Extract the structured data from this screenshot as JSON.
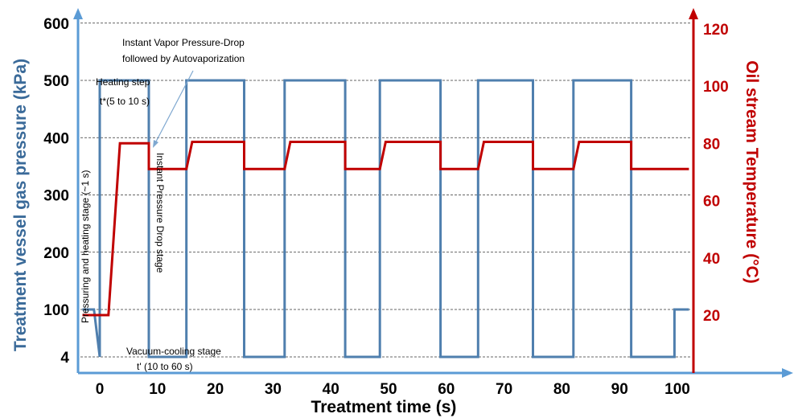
{
  "chart_data": {
    "type": "line",
    "xlabel": "Treatment time (s)",
    "ylabel_left": "Treatment vessel gas pressure (kPa)",
    "ylabel_right": "Oil stream Temperature (°C)",
    "x_ticks": [
      "0",
      "10",
      "20",
      "30",
      "40",
      "50",
      "60",
      "70",
      "80",
      "90",
      "100"
    ],
    "y_left_ticks": [
      "4",
      "100",
      "200",
      "300",
      "400",
      "500",
      "600"
    ],
    "y_right_ticks": [
      "20",
      "40",
      "60",
      "80",
      "100",
      "120"
    ],
    "xlim": [
      -3,
      102
    ],
    "ylim_left": [
      4,
      600
    ],
    "ylim_right": [
      20,
      120
    ],
    "grid": "horizontal dashed",
    "colors": {
      "pressure": "#4f7fae",
      "temperature": "#c00000",
      "axis_left": "#5b9bd5",
      "axis_right": "#c00000",
      "axis_x": "#5b9bd5"
    },
    "series": [
      {
        "axis": "left",
        "color": "#4f7fae",
        "points": [
          [
            -3,
            100
          ],
          [
            -1,
            100
          ],
          [
            0,
            4
          ],
          [
            0,
            500
          ],
          [
            8.5,
            500
          ],
          [
            8.5,
            4
          ],
          [
            15,
            4
          ],
          [
            15,
            500
          ],
          [
            25,
            500
          ],
          [
            25,
            4
          ],
          [
            32,
            4
          ],
          [
            32,
            500
          ],
          [
            42.5,
            500
          ],
          [
            42.5,
            4
          ],
          [
            48.5,
            4
          ],
          [
            48.5,
            500
          ],
          [
            59,
            500
          ],
          [
            59,
            4
          ],
          [
            65.5,
            4
          ],
          [
            65.5,
            500
          ],
          [
            75,
            500
          ],
          [
            75,
            4
          ],
          [
            82,
            4
          ],
          [
            82,
            500
          ],
          [
            92,
            500
          ],
          [
            92,
            4
          ],
          [
            99.5,
            4
          ],
          [
            99.5,
            100
          ],
          [
            102,
            100
          ]
        ]
      },
      {
        "axis": "right",
        "color": "#c00000",
        "points": [
          [
            -3,
            20
          ],
          [
            1.5,
            20
          ],
          [
            3.5,
            80
          ],
          [
            8.5,
            80
          ],
          [
            8.5,
            71
          ],
          [
            15,
            71
          ],
          [
            16,
            80.5
          ],
          [
            25,
            80.5
          ],
          [
            25,
            71
          ],
          [
            32,
            71
          ],
          [
            33,
            80.5
          ],
          [
            42.5,
            80.5
          ],
          [
            42.5,
            71
          ],
          [
            48.5,
            71
          ],
          [
            49.5,
            80.5
          ],
          [
            59,
            80.5
          ],
          [
            59,
            71
          ],
          [
            65.5,
            71
          ],
          [
            66.5,
            80.5
          ],
          [
            75,
            80.5
          ],
          [
            75,
            71
          ],
          [
            82,
            71
          ],
          [
            83,
            80.5
          ],
          [
            92,
            80.5
          ],
          [
            92,
            71
          ],
          [
            102,
            71
          ]
        ]
      }
    ],
    "annotations": {
      "vapor_line1": "Instant Vapor Pressure-Drop",
      "vapor_line2": "followed by Autovaporization",
      "heating_step": "Heating step",
      "heating_time": "t*(5 to 10 s)",
      "pressuring": "Pressuring and heating stage (~1 s)",
      "instant_drop": "Instant Pressure Drop stage",
      "vacuum_stage": "Vacuum-cooling stage",
      "vacuum_time": "t' (10 to 60 s)"
    }
  }
}
